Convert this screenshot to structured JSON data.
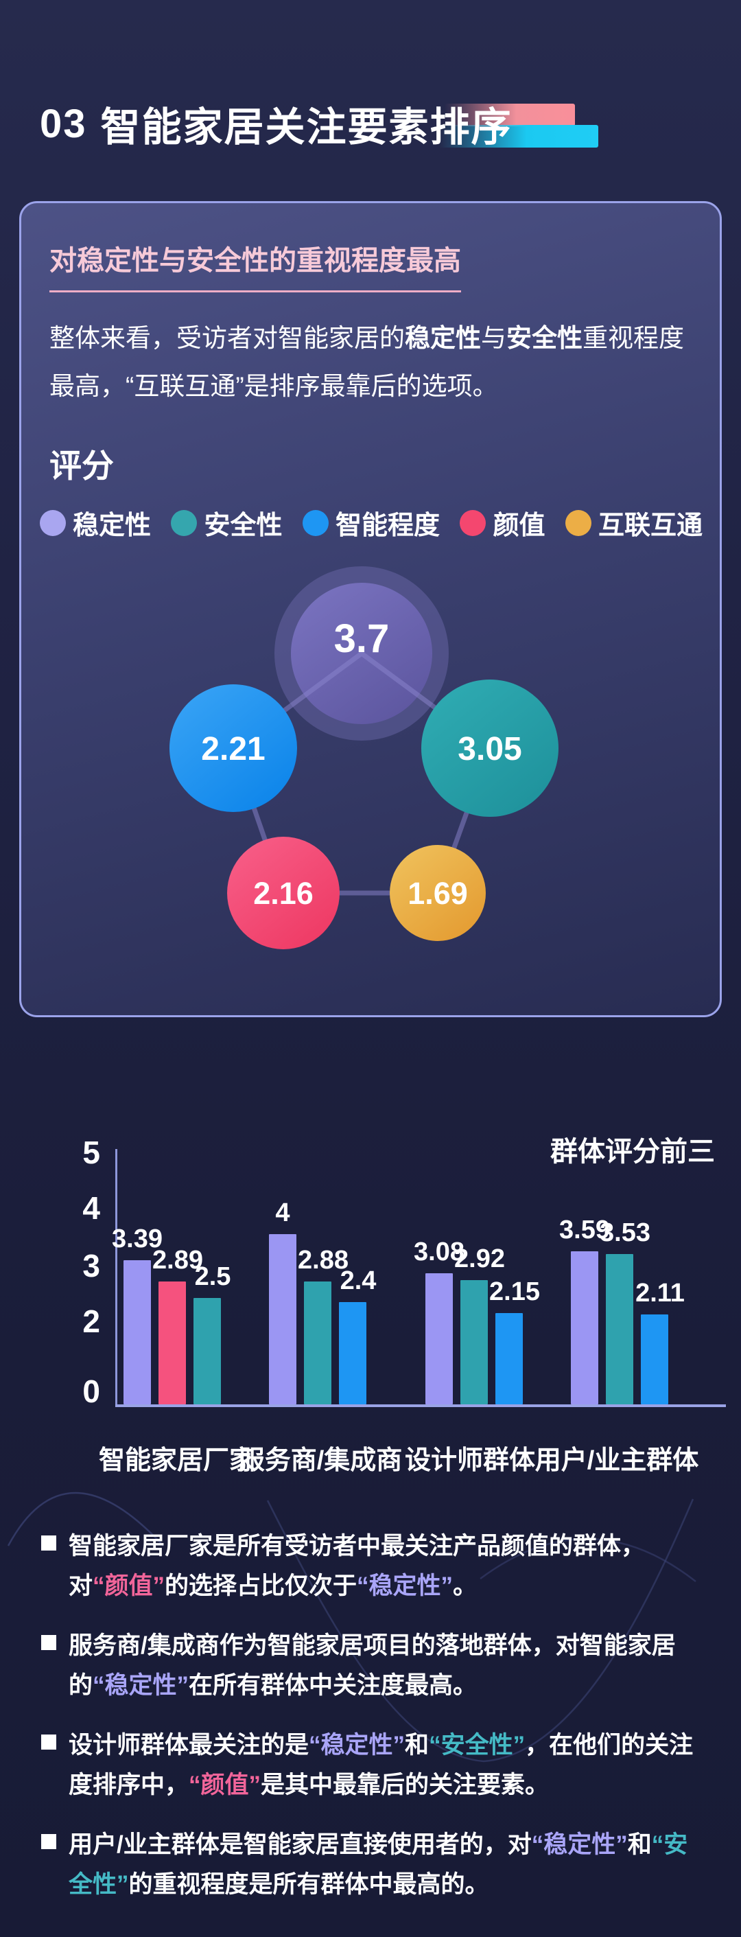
{
  "page": {
    "section_number": "03",
    "section_title": "智能家居关注要素排序"
  },
  "colors": {
    "background": "#20234a",
    "card_border": "#9ba3ea",
    "card_header_pink": "#f7cad8",
    "accent_bar_pink": "#f2919b",
    "accent_bar_cyan": "#1bc9f1",
    "highlight_pink": "#f2659a",
    "highlight_purple": "#a9a5f8",
    "highlight_teal": "#45bac6",
    "factor_colors": {
      "稳定性": "#9b96f3",
      "安全性": "#2fa2ae",
      "智能程度": "#1e96f3",
      "颜值": "#f5527e",
      "互联互通": "#ecae46"
    }
  },
  "card": {
    "header": "对稳定性与安全性的重视程度最高",
    "paragraph_segments": [
      {
        "t": "整体来看，受访者对智能家居的",
        "s": "n"
      },
      {
        "t": "稳定性",
        "s": "b"
      },
      {
        "t": "与",
        "s": "n"
      },
      {
        "t": "安全性",
        "s": "b"
      },
      {
        "t": "重视程度最高，“互联互通”是排序最靠后的选项。",
        "s": "n"
      }
    ],
    "score_heading": "评分",
    "legend": [
      {
        "label": "稳定性",
        "color": "#a9a6f0"
      },
      {
        "label": "安全性",
        "color": "#35a6ae"
      },
      {
        "label": "智能程度",
        "color": "#1e96f3"
      },
      {
        "label": "颜值",
        "color": "#f4476f"
      },
      {
        "label": "互联互通",
        "color": "#ecae46"
      }
    ]
  },
  "chart_data": [
    {
      "type": "bubble",
      "title": "评分",
      "legend_position": "top",
      "items": [
        {
          "label": "稳定性",
          "value": 3.7,
          "color": "#6e67b4"
        },
        {
          "label": "智能程度",
          "value": 2.21,
          "color": "#1e96f3"
        },
        {
          "label": "安全性",
          "value": 3.05,
          "color": "#27a0a9"
        },
        {
          "label": "颜值",
          "value": 2.16,
          "color": "#f4517c"
        },
        {
          "label": "互联互通",
          "value": 1.69,
          "color": "#ecae46"
        }
      ]
    },
    {
      "type": "bar",
      "title": "群体评分前三",
      "ylabel": "",
      "xlabel": "",
      "ylim": [
        0,
        5
      ],
      "y_ticks": [
        "5",
        "4",
        "3",
        "2",
        "0"
      ],
      "grid": false,
      "categories": [
        "智能家居厂家",
        "服务商/集成商",
        "设计师群体",
        "用户/业主群体"
      ],
      "groups": [
        {
          "label": "智能家居厂家",
          "bars": [
            {
              "factor": "稳定性",
              "value": 3.39
            },
            {
              "factor": "颜值",
              "value": 2.89
            },
            {
              "factor": "安全性",
              "value": 2.5
            }
          ]
        },
        {
          "label": "服务商/集成商",
          "bars": [
            {
              "factor": "稳定性",
              "value": 4
            },
            {
              "factor": "安全性",
              "value": 2.88
            },
            {
              "factor": "智能程度",
              "value": 2.4
            }
          ]
        },
        {
          "label": "设计师群体",
          "bars": [
            {
              "factor": "稳定性",
              "value": 3.08
            },
            {
              "factor": "安全性",
              "value": 2.92
            },
            {
              "factor": "智能程度",
              "value": 2.15
            }
          ]
        },
        {
          "label": "用户/业主群体",
          "bars": [
            {
              "factor": "稳定性",
              "value": 3.59
            },
            {
              "factor": "安全性",
              "value": 3.53
            },
            {
              "factor": "智能程度",
              "value": 2.11
            }
          ]
        }
      ]
    }
  ],
  "bullets": [
    {
      "segments": [
        {
          "t": "智能家居厂家",
          "s": "b"
        },
        {
          "t": "是所有受访者中最关注产品颜值的群体，对",
          "s": "n"
        },
        {
          "t": "“颜值”",
          "s": "pink"
        },
        {
          "t": "的选择占比仅次于",
          "s": "n"
        },
        {
          "t": "“稳定性”",
          "s": "purple"
        },
        {
          "t": "。",
          "s": "n"
        }
      ]
    },
    {
      "segments": [
        {
          "t": "服务商/集成商",
          "s": "b"
        },
        {
          "t": "作为智能家居项目的落地群体，对智能家居的",
          "s": "n"
        },
        {
          "t": "“稳定性”",
          "s": "purple"
        },
        {
          "t": "在所有群体中关注度最高。",
          "s": "n"
        }
      ]
    },
    {
      "segments": [
        {
          "t": "设计师群体",
          "s": "b"
        },
        {
          "t": "最关注的是",
          "s": "n"
        },
        {
          "t": "“稳定性”",
          "s": "purple"
        },
        {
          "t": "和",
          "s": "n"
        },
        {
          "t": "“安全性”",
          "s": "teal"
        },
        {
          "t": "，在他们的关注度排序中，",
          "s": "n"
        },
        {
          "t": "“颜值”",
          "s": "pink"
        },
        {
          "t": "是其中最靠后的关注要素。",
          "s": "n"
        }
      ]
    },
    {
      "segments": [
        {
          "t": "用户/业主群体",
          "s": "b"
        },
        {
          "t": "是智能家居直接使用者的，对",
          "s": "n"
        },
        {
          "t": "“稳定性”",
          "s": "purple"
        },
        {
          "t": "和",
          "s": "n"
        },
        {
          "t": "“安全性”",
          "s": "teal"
        },
        {
          "t": "的重视程度是所有群体中最高的。",
          "s": "n"
        }
      ]
    }
  ]
}
